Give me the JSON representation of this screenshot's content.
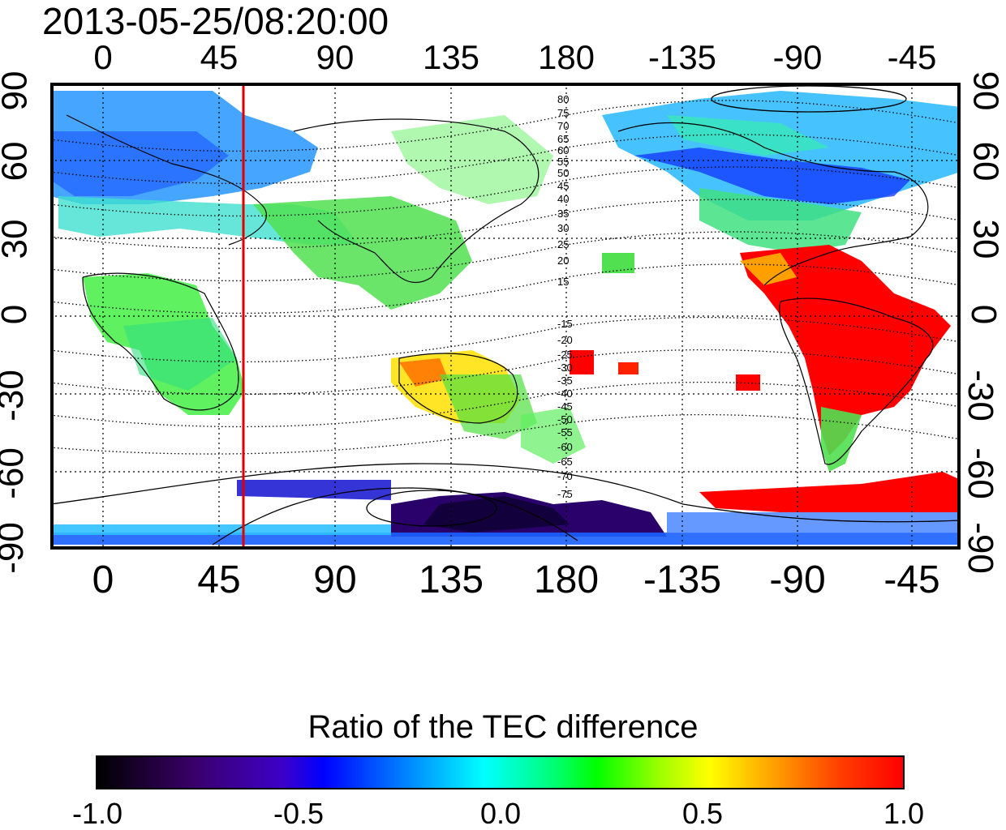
{
  "title": "2013-05-25/08:20:00",
  "longitude_ticks": [
    "0",
    "45",
    "90",
    "135",
    "180",
    "-135",
    "-90",
    "-45"
  ],
  "latitude_ticks": [
    "90",
    "60",
    "30",
    "0",
    "-30",
    "-60",
    "-90"
  ],
  "contour_labels_north": [
    "80",
    "75",
    "70",
    "65",
    "60",
    "55",
    "50",
    "45",
    "40",
    "35",
    "30",
    "25",
    "20",
    "15"
  ],
  "contour_labels_south": [
    "-15",
    "-20",
    "-25",
    "-30",
    "-35",
    "-40",
    "-45",
    "-50",
    "-55",
    "-60",
    "-65",
    "-70",
    "-75"
  ],
  "marker_line": {
    "longitude": 55,
    "color": "#e00000"
  },
  "colorbar": {
    "title": "Ratio of the TEC difference",
    "labels": [
      "-1.0",
      "-0.5",
      "0.0",
      "0.5",
      "1.0"
    ],
    "range": [
      -1.0,
      1.0
    ]
  },
  "colors": {
    "land_lines": "#000000",
    "grid": "#000000",
    "negative_strong": "#1a0060",
    "negative": "#0040ff",
    "neutral": "#00e0ff",
    "slightly_positive": "#40ff40",
    "positive": "#ffff00",
    "positive_strong": "#ff0000"
  }
}
